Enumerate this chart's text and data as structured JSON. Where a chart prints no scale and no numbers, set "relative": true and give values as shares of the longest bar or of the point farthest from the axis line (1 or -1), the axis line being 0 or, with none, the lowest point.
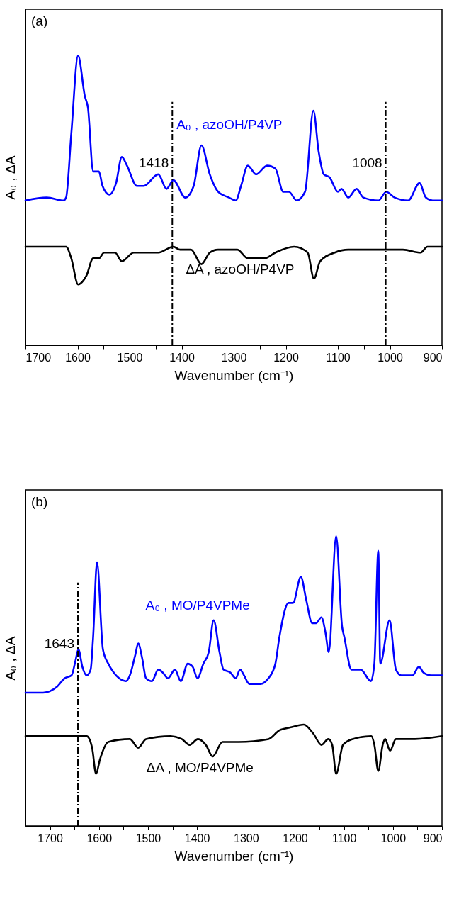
{
  "chart_data": [
    {
      "type": "line",
      "title": "(a)",
      "xlabel": "Wavenumber (cm⁻¹)",
      "ylabel": "A₀ , ΔA",
      "relative": true,
      "xlim": [
        1700,
        900
      ],
      "xticks": [
        1700,
        {
          "value": 1650,
          "label": null
        },
        1600,
        {
          "value": 1550,
          "label": null
        },
        1500,
        {
          "value": 1450,
          "label": null
        },
        1400,
        {
          "value": 1350,
          "label": null
        },
        1300,
        {
          "value": 1250,
          "label": null
        },
        1200,
        {
          "value": 1150,
          "label": null
        },
        1100,
        {
          "value": 1050,
          "label": null
        },
        1000,
        {
          "value": 950,
          "label": null
        },
        900
      ],
      "ref_lines": [
        {
          "axis": "x",
          "value": 1418,
          "label": "1418",
          "line_style": "dashed",
          "color": "#000000"
        },
        {
          "axis": "x",
          "value": 1008,
          "label": "1008",
          "line_style": "dashed",
          "color": "#000000"
        }
      ],
      "series": [
        {
          "name": "A₀ , azoOH/P4VP",
          "color": "#0000ff",
          "x": [
            1700,
            1659,
            1627,
            1622,
            1612,
            1599,
            1586,
            1580,
            1570,
            1559,
            1552,
            1539,
            1526,
            1515,
            1505,
            1486,
            1473,
            1445,
            1429,
            1416,
            1393,
            1377,
            1362,
            1346,
            1330,
            1309,
            1296,
            1286,
            1273,
            1257,
            1236,
            1220,
            1205,
            1194,
            1179,
            1163,
            1147,
            1137,
            1127,
            1116,
            1100,
            1093,
            1080,
            1064,
            1051,
            1022,
            1007,
            991,
            965,
            943,
            931,
            918,
            900
          ],
          "values": [
            0.5,
            0.51,
            0.5,
            0.51,
            0.73,
            1.0,
            0.86,
            0.82,
            0.6,
            0.6,
            0.55,
            0.52,
            0.56,
            0.65,
            0.62,
            0.55,
            0.55,
            0.59,
            0.54,
            0.57,
            0.51,
            0.55,
            0.69,
            0.59,
            0.53,
            0.51,
            0.5,
            0.55,
            0.62,
            0.59,
            0.62,
            0.61,
            0.53,
            0.53,
            0.5,
            0.53,
            0.81,
            0.67,
            0.59,
            0.58,
            0.53,
            0.54,
            0.51,
            0.54,
            0.51,
            0.5,
            0.53,
            0.51,
            0.5,
            0.56,
            0.51,
            0.5,
            0.5
          ]
        },
        {
          "name": "ΔA , azoOH/P4VP",
          "color": "#000000",
          "x": [
            1700,
            1622,
            1612,
            1599,
            1583,
            1570,
            1559,
            1549,
            1528,
            1515,
            1492,
            1445,
            1416,
            1403,
            1382,
            1362,
            1346,
            1330,
            1293,
            1273,
            1241,
            1220,
            1184,
            1158,
            1146,
            1134,
            1106,
            1080,
            1007,
            975,
            941,
            928,
            900
          ],
          "values": [
            0.34,
            0.34,
            0.3,
            0.21,
            0.24,
            0.3,
            0.3,
            0.32,
            0.32,
            0.29,
            0.32,
            0.32,
            0.34,
            0.33,
            0.33,
            0.28,
            0.32,
            0.33,
            0.33,
            0.3,
            0.3,
            0.32,
            0.34,
            0.32,
            0.23,
            0.29,
            0.32,
            0.33,
            0.33,
            0.33,
            0.32,
            0.34,
            0.34
          ]
        }
      ]
    },
    {
      "type": "line",
      "title": "(b)",
      "xlabel": "Wavenumber (cm⁻¹)",
      "ylabel": "A₀ , ΔA",
      "relative": true,
      "xlim": [
        1750,
        900
      ],
      "xticks": [
        1700,
        {
          "value": 1650,
          "label": null
        },
        1600,
        {
          "value": 1550,
          "label": null
        },
        1500,
        {
          "value": 1450,
          "label": null
        },
        1400,
        {
          "value": 1350,
          "label": null
        },
        1300,
        {
          "value": 1250,
          "label": null
        },
        1200,
        {
          "value": 1150,
          "label": null
        },
        1100,
        {
          "value": 1050,
          "label": null
        },
        1000,
        {
          "value": 950,
          "label": null
        },
        900
      ],
      "ref_lines": [
        {
          "axis": "x",
          "value": 1643,
          "label": "1643",
          "line_style": "dashed",
          "color": "#000000"
        }
      ],
      "series": [
        {
          "name": "A₀ , MO/P4VPMe",
          "color": "#0000ff",
          "x": [
            1750,
            1714,
            1686,
            1670,
            1656,
            1648,
            1642,
            1634,
            1625,
            1617,
            1612,
            1604,
            1592,
            1581,
            1570,
            1559,
            1545,
            1537,
            1526,
            1520,
            1512,
            1504,
            1492,
            1479,
            1470,
            1459,
            1445,
            1433,
            1419,
            1409,
            1399,
            1387,
            1376,
            1366,
            1354,
            1346,
            1332,
            1321,
            1312,
            1304,
            1293,
            1271,
            1254,
            1240,
            1232,
            1213,
            1204,
            1188,
            1177,
            1165,
            1157,
            1146,
            1138,
            1131,
            1116,
            1104,
            1099,
            1085,
            1066,
            1045,
            1038,
            1030,
            1026,
            1007,
            994,
            983,
            960,
            947,
            938,
            922,
            900
          ],
          "values": [
            0.46,
            0.46,
            0.48,
            0.51,
            0.52,
            0.57,
            0.61,
            0.55,
            0.52,
            0.54,
            0.65,
            0.91,
            0.61,
            0.56,
            0.53,
            0.51,
            0.5,
            0.52,
            0.59,
            0.63,
            0.58,
            0.51,
            0.5,
            0.54,
            0.53,
            0.51,
            0.54,
            0.5,
            0.56,
            0.55,
            0.51,
            0.56,
            0.6,
            0.71,
            0.6,
            0.54,
            0.53,
            0.51,
            0.54,
            0.52,
            0.49,
            0.49,
            0.51,
            0.56,
            0.65,
            0.77,
            0.77,
            0.86,
            0.78,
            0.7,
            0.7,
            0.72,
            0.67,
            0.6,
            1.0,
            0.69,
            0.65,
            0.54,
            0.54,
            0.5,
            0.56,
            0.95,
            0.56,
            0.71,
            0.54,
            0.52,
            0.52,
            0.55,
            0.53,
            0.52,
            0.52
          ]
        },
        {
          "name": "ΔA , MO/P4VPMe",
          "color": "#000000",
          "x": [
            1750,
            1703,
            1648,
            1625,
            1614,
            1606,
            1598,
            1581,
            1537,
            1520,
            1504,
            1454,
            1431,
            1415,
            1398,
            1382,
            1368,
            1348,
            1315,
            1254,
            1232,
            1210,
            1182,
            1163,
            1146,
            1132,
            1124,
            1116,
            1102,
            1082,
            1044,
            1038,
            1030,
            1021,
            1016,
            1006,
            994,
            955,
            900
          ],
          "values": [
            0.31,
            0.31,
            0.31,
            0.31,
            0.27,
            0.18,
            0.23,
            0.29,
            0.3,
            0.27,
            0.3,
            0.31,
            0.3,
            0.28,
            0.3,
            0.28,
            0.24,
            0.29,
            0.29,
            0.3,
            0.33,
            0.34,
            0.35,
            0.32,
            0.28,
            0.3,
            0.28,
            0.18,
            0.28,
            0.3,
            0.31,
            0.28,
            0.19,
            0.28,
            0.3,
            0.26,
            0.3,
            0.3,
            0.31
          ]
        }
      ]
    }
  ]
}
